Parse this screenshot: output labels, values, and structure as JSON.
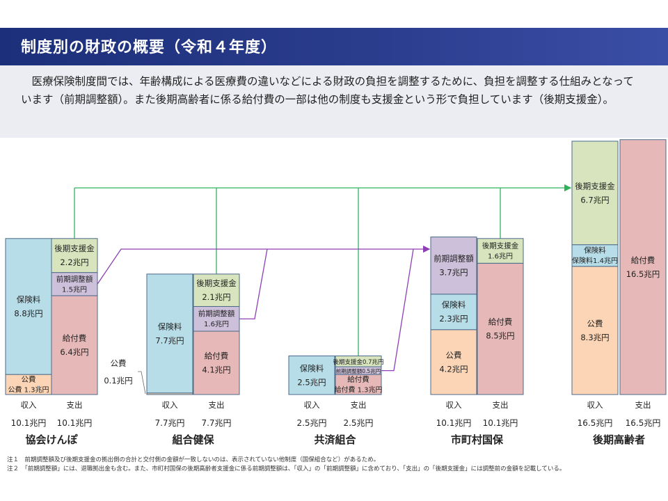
{
  "header": {
    "title": "制度別の財政の概要（令和４年度）"
  },
  "intro": {
    "text": "医療保険制度間では、年齢構成による医療費の違いなどによる財政の負担を調整するために、負担を調整する仕組みとなっています（前期調整額）。また後期高齢者に係る給付費の一部は他の制度も支援金という形で負担しています（後期支援金）。"
  },
  "notes": [
    "注１　前期調整額及び後期支援金の拠出側の合計と交付側の金額が一致しないのは、表示されていない他制度（国保組合など）があるため。",
    "注２　「前期調整額」には、退職拠出金も含む。また、市町村国保の後期高齢者支援金に係る前期調整額は、「収入」の「前期調整額」に含めており、「支出」の「後期支援金」には調整前の金額を記載している。"
  ],
  "chart_data": {
    "type": "stacked-bar",
    "unit": "兆円",
    "column_labels": {
      "income": "収入",
      "expense": "支出"
    },
    "colors": {
      "保険料": "#b7dde8",
      "公費": "#fbd5b5",
      "前期調整額": "#ccc0da",
      "後期支援金": "#d7e4bd",
      "給付費": "#e6b9b8",
      "arrow_green": "#2fb35a",
      "arrow_purple": "#8e3fb5"
    },
    "groups": [
      {
        "name": "協会けんぽ",
        "income_total_label": "10.1兆円",
        "expense_total_label": "10.1兆円",
        "income": [
          {
            "label": "公費",
            "value": 1.3,
            "text": "公費 1.3兆円"
          },
          {
            "label": "保険料",
            "value": 8.8,
            "text": "8.8兆円"
          }
        ],
        "expense": [
          {
            "label": "給付費",
            "value": 6.4,
            "text": "6.4兆円"
          },
          {
            "label": "前期調整額",
            "value": 1.5,
            "text": "1.5兆円"
          },
          {
            "label": "後期支援金",
            "value": 2.2,
            "text": "2.2兆円"
          }
        ]
      },
      {
        "name": "組合健保",
        "income_total_label": "7.7兆円",
        "expense_total_label": "7.7兆円",
        "income": [
          {
            "label": "公費",
            "value": 0.1,
            "text": "0.1兆円"
          },
          {
            "label": "保険料",
            "value": 7.7,
            "text": "7.7兆円"
          }
        ],
        "expense": [
          {
            "label": "給付費",
            "value": 4.1,
            "text": "4.1兆円"
          },
          {
            "label": "前期調整額",
            "value": 1.6,
            "text": "1.6兆円"
          },
          {
            "label": "後期支援金",
            "value": 2.1,
            "text": "2.1兆円"
          }
        ]
      },
      {
        "name": "共済組合",
        "income_total_label": "2.5兆円",
        "expense_total_label": "2.5兆円",
        "income": [
          {
            "label": "保険料",
            "value": 2.5,
            "text": "2.5兆円"
          }
        ],
        "expense": [
          {
            "label": "給付費",
            "value": 1.3,
            "text": "給付費 1.3兆円"
          },
          {
            "label": "前期調整額",
            "value": 0.5,
            "text": "前期調整額0.5兆円"
          },
          {
            "label": "後期支援金",
            "value": 0.7,
            "text": "後期支援金0.7兆円"
          }
        ]
      },
      {
        "name": "市町村国保",
        "income_total_label": "10.1兆円",
        "expense_total_label": "10.1兆円",
        "income": [
          {
            "label": "公費",
            "value": 4.2,
            "text": "4.2兆円"
          },
          {
            "label": "保険料",
            "value": 2.3,
            "text": "2.3兆円"
          },
          {
            "label": "前期調整額",
            "value": 3.7,
            "text": "3.7兆円"
          }
        ],
        "expense": [
          {
            "label": "給付費",
            "value": 8.5,
            "text": "8.5兆円"
          },
          {
            "label": "後期支援金",
            "value": 1.6,
            "text": "1.6兆円"
          }
        ]
      },
      {
        "name": "後期高齢者",
        "income_total_label": "16.5兆円",
        "expense_total_label": "16.5兆円",
        "income": [
          {
            "label": "公費",
            "value": 8.3,
            "text": "8.3兆円"
          },
          {
            "label": "保険料",
            "value": 1.4,
            "text": "保険料1.4兆円"
          },
          {
            "label": "後期支援金",
            "value": 6.7,
            "text": "6.7兆円"
          }
        ],
        "expense": [
          {
            "label": "給付費",
            "value": 16.5,
            "text": "16.5兆円"
          }
        ]
      }
    ]
  }
}
